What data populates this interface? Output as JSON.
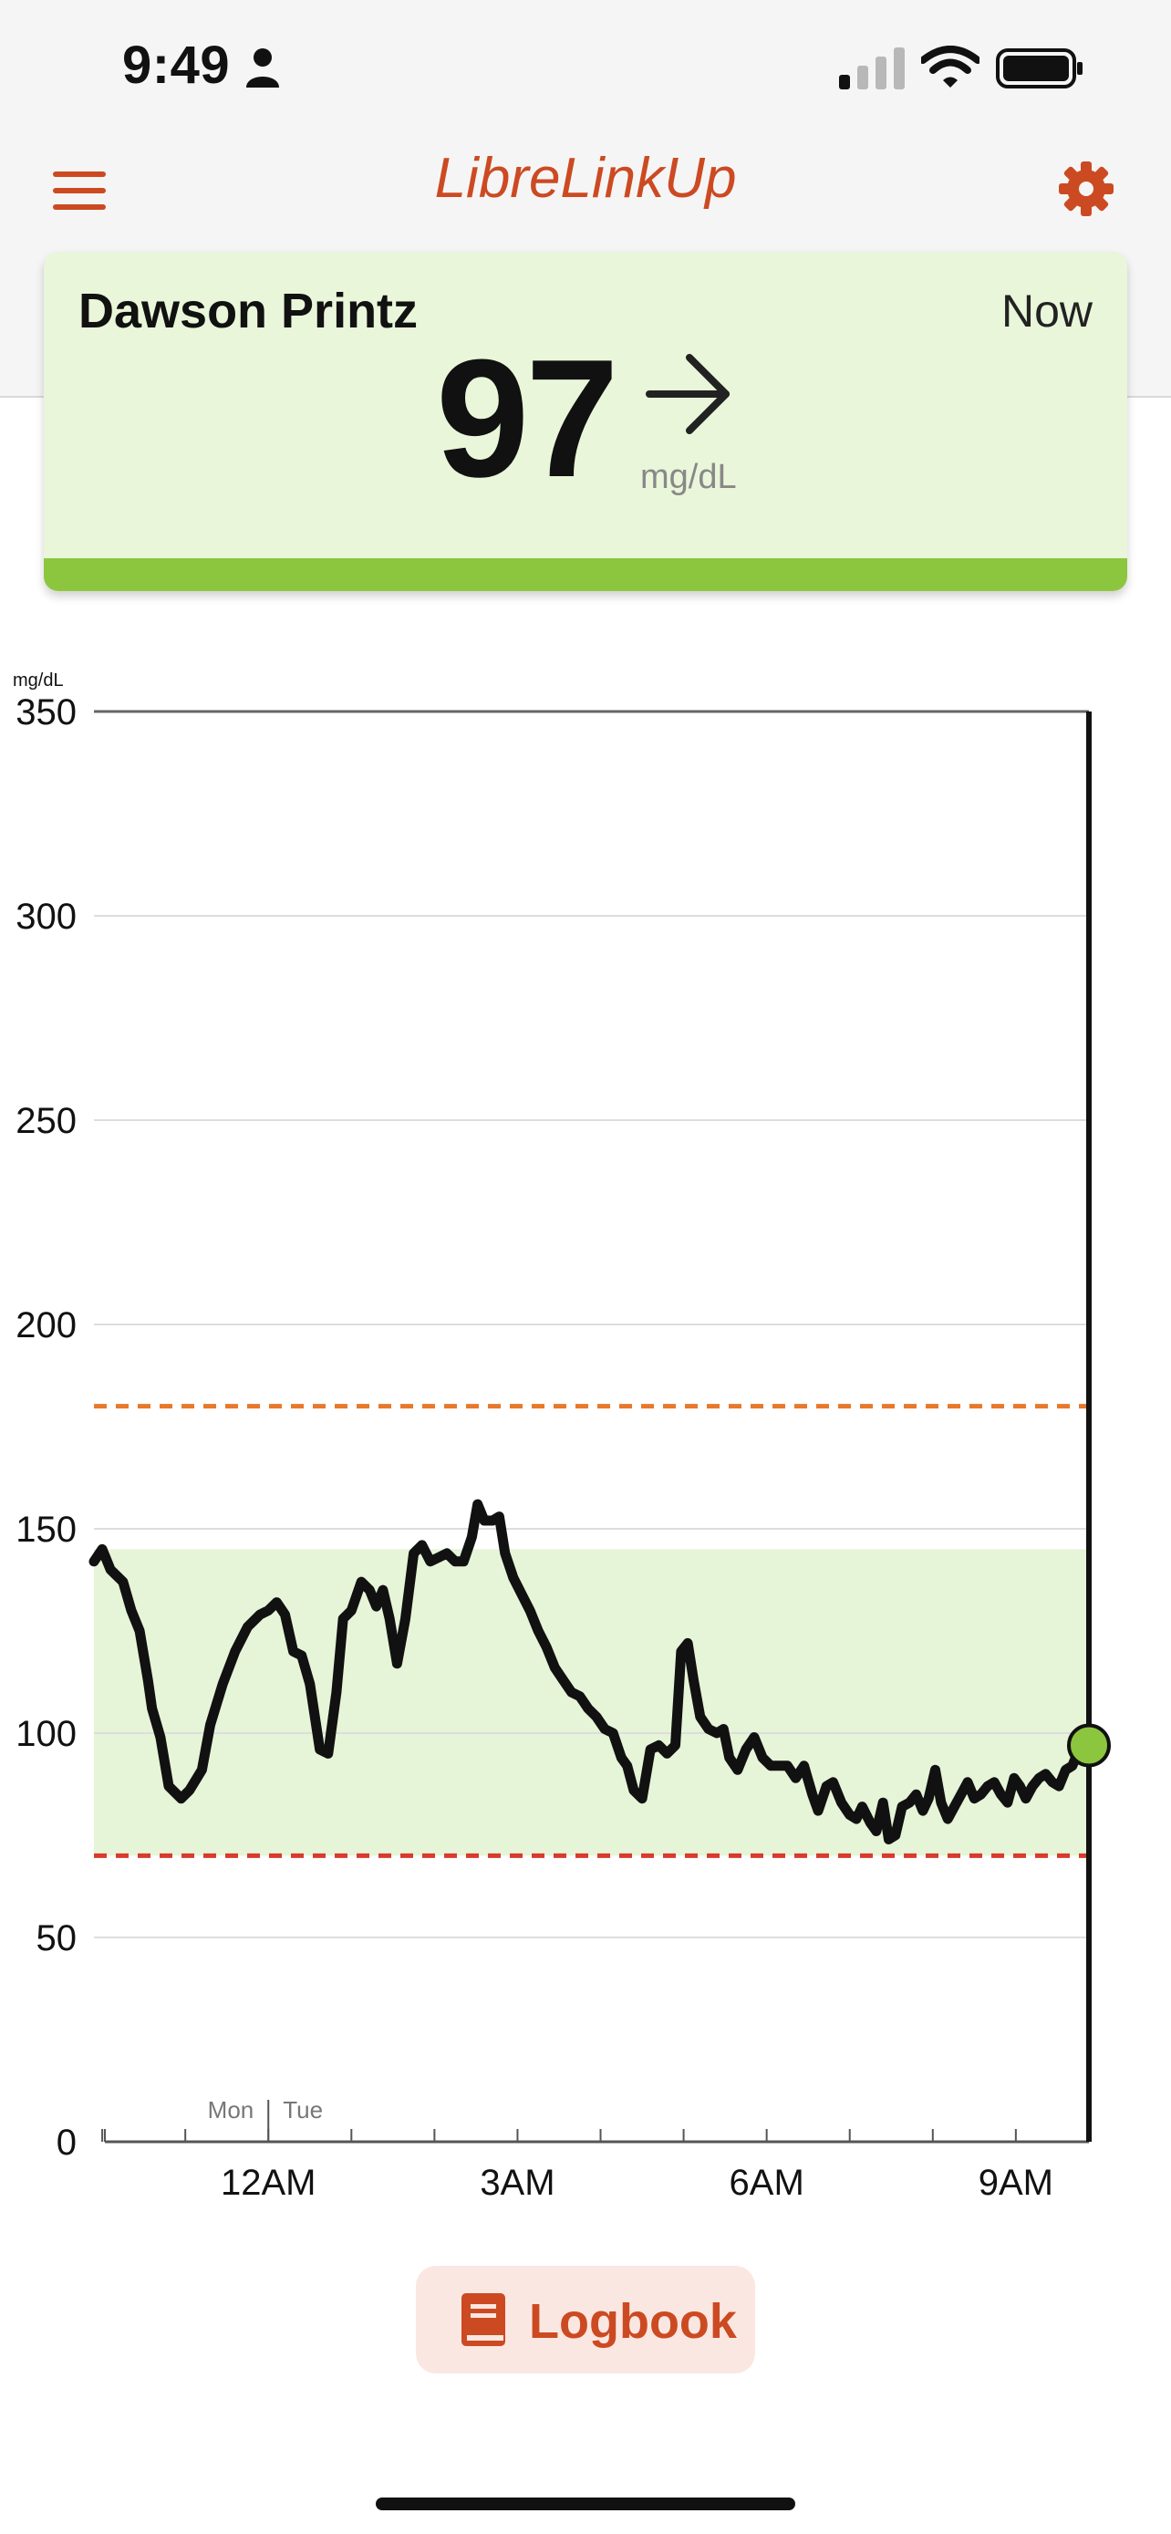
{
  "status_bar": {
    "time": "9:49"
  },
  "header": {
    "title": "LibreLinkUp"
  },
  "patient_card": {
    "name": "Dawson Printz",
    "time_label": "Now",
    "glucose_value": "97",
    "unit": "mg/dL",
    "trend": "steady",
    "status_color": "#8cc63e",
    "card_color": "#e9f6d9"
  },
  "chart_data": {
    "type": "line",
    "ylabel": "mg/dL",
    "ylim": [
      0,
      350
    ],
    "y_ticks": [
      0,
      50,
      100,
      150,
      200,
      250,
      300,
      350
    ],
    "x_range_hours": [
      -2.1,
      9.88
    ],
    "x_ticks": [
      {
        "hour": 0,
        "label": "12AM"
      },
      {
        "hour": 3,
        "label": "3AM"
      },
      {
        "hour": 6,
        "label": "6AM"
      },
      {
        "hour": 9,
        "label": "9AM"
      }
    ],
    "day_labels": [
      "Mon",
      "Tue"
    ],
    "target_range": [
      70,
      145
    ],
    "high_threshold": 180,
    "low_threshold": 70,
    "colors": {
      "line": "#111111",
      "target_band": "#e6f4d8",
      "high": "#e8782a",
      "low": "#d83a2c",
      "current_dot": "#8cc63e"
    },
    "series": [
      {
        "points": [
          [
            -2.1,
            142
          ],
          [
            -2.0,
            145
          ],
          [
            -1.9,
            140
          ],
          [
            -1.75,
            137
          ],
          [
            -1.65,
            130
          ],
          [
            -1.55,
            125
          ],
          [
            -1.45,
            113
          ],
          [
            -1.4,
            106
          ],
          [
            -1.3,
            99
          ],
          [
            -1.2,
            87
          ],
          [
            -1.05,
            84
          ],
          [
            -0.95,
            86
          ],
          [
            -0.8,
            91
          ],
          [
            -0.7,
            102
          ],
          [
            -0.55,
            112
          ],
          [
            -0.4,
            120
          ],
          [
            -0.25,
            126
          ],
          [
            -0.1,
            129
          ],
          [
            0.0,
            130
          ],
          [
            0.1,
            132
          ],
          [
            0.2,
            129
          ],
          [
            0.3,
            120
          ],
          [
            0.4,
            119
          ],
          [
            0.5,
            112
          ],
          [
            0.62,
            96
          ],
          [
            0.72,
            95
          ],
          [
            0.82,
            110
          ],
          [
            0.9,
            128
          ],
          [
            1.0,
            130
          ],
          [
            1.12,
            137
          ],
          [
            1.22,
            135
          ],
          [
            1.3,
            131
          ],
          [
            1.38,
            135
          ],
          [
            1.46,
            128
          ],
          [
            1.55,
            117
          ],
          [
            1.65,
            128
          ],
          [
            1.75,
            144
          ],
          [
            1.85,
            146
          ],
          [
            1.95,
            142
          ],
          [
            2.05,
            143
          ],
          [
            2.15,
            144
          ],
          [
            2.25,
            142
          ],
          [
            2.35,
            142
          ],
          [
            2.45,
            148
          ],
          [
            2.52,
            156
          ],
          [
            2.6,
            152
          ],
          [
            2.7,
            152
          ],
          [
            2.78,
            153
          ],
          [
            2.85,
            144
          ],
          [
            2.95,
            138
          ],
          [
            3.05,
            134
          ],
          [
            3.15,
            130
          ],
          [
            3.25,
            125
          ],
          [
            3.35,
            121
          ],
          [
            3.45,
            116
          ],
          [
            3.55,
            113
          ],
          [
            3.65,
            110
          ],
          [
            3.75,
            109
          ],
          [
            3.85,
            106
          ],
          [
            3.95,
            104
          ],
          [
            4.05,
            101
          ],
          [
            4.15,
            100
          ],
          [
            4.25,
            94
          ],
          [
            4.32,
            92
          ],
          [
            4.4,
            86
          ],
          [
            4.5,
            84
          ],
          [
            4.6,
            96
          ],
          [
            4.7,
            97
          ],
          [
            4.8,
            95
          ],
          [
            4.9,
            97
          ],
          [
            4.97,
            120
          ],
          [
            5.05,
            122
          ],
          [
            5.12,
            113
          ],
          [
            5.2,
            104
          ],
          [
            5.3,
            101
          ],
          [
            5.4,
            100
          ],
          [
            5.48,
            101
          ],
          [
            5.55,
            94
          ],
          [
            5.65,
            91
          ],
          [
            5.75,
            96
          ],
          [
            5.85,
            99
          ],
          [
            5.95,
            94
          ],
          [
            6.05,
            92
          ],
          [
            6.15,
            92
          ],
          [
            6.25,
            92
          ],
          [
            6.35,
            89
          ],
          [
            6.45,
            92
          ],
          [
            6.55,
            85
          ],
          [
            6.62,
            81
          ],
          [
            6.72,
            87
          ],
          [
            6.8,
            88
          ],
          [
            6.9,
            83
          ],
          [
            7.0,
            80
          ],
          [
            7.08,
            79
          ],
          [
            7.15,
            82
          ],
          [
            7.25,
            78
          ],
          [
            7.32,
            76
          ],
          [
            7.4,
            83
          ],
          [
            7.47,
            74
          ],
          [
            7.55,
            75
          ],
          [
            7.63,
            82
          ],
          [
            7.72,
            83
          ],
          [
            7.8,
            85
          ],
          [
            7.88,
            81
          ],
          [
            7.95,
            84
          ],
          [
            8.03,
            91
          ],
          [
            8.1,
            83
          ],
          [
            8.18,
            79
          ],
          [
            8.26,
            82
          ],
          [
            8.34,
            85
          ],
          [
            8.42,
            88
          ],
          [
            8.5,
            84
          ],
          [
            8.58,
            85
          ],
          [
            8.66,
            87
          ],
          [
            8.74,
            88
          ],
          [
            8.82,
            85
          ],
          [
            8.9,
            83
          ],
          [
            8.98,
            89
          ],
          [
            9.05,
            87
          ],
          [
            9.12,
            84
          ],
          [
            9.2,
            87
          ],
          [
            9.28,
            89
          ],
          [
            9.36,
            90
          ],
          [
            9.44,
            88
          ],
          [
            9.52,
            87
          ],
          [
            9.6,
            91
          ],
          [
            9.68,
            92
          ],
          [
            9.76,
            96
          ],
          [
            9.84,
            98
          ],
          [
            9.88,
            97
          ]
        ]
      }
    ]
  },
  "logbook": {
    "label": "Logbook"
  }
}
